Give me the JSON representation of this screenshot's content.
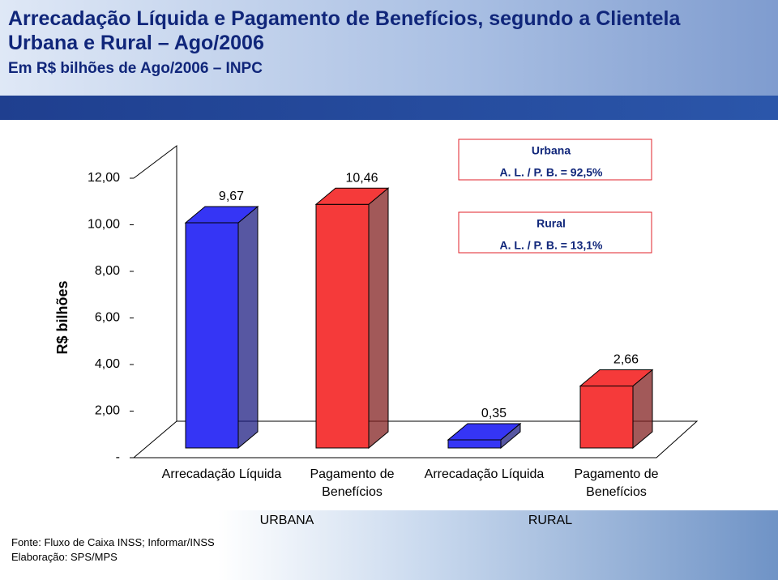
{
  "chart_data": {
    "type": "bar3d",
    "title": "Arrecadação Líquida e Pagamento de Benefícios, segundo a Clientela Urbana e Rural – Ago/2006",
    "subtitle": "Em R$ bilhões de Ago/2006 – INPC",
    "y_label": "R$ bilhões",
    "categories": [
      "Arrecadação Líquida",
      "Pagamento de Benefícios",
      "Arrecadação Líquida",
      "Pagamento de Benefícios"
    ],
    "groups": [
      "URBANA",
      "RURAL"
    ],
    "values": [
      9.67,
      10.46,
      0.35,
      2.66
    ],
    "value_labels": [
      "9,67",
      "10,46",
      "0,35",
      "2,66"
    ],
    "colors": [
      "#3535f5",
      "#f53a3a",
      "#3535f5",
      "#f53a3a"
    ],
    "ylim": [
      0,
      12
    ],
    "yticks": [
      {
        "value": 0,
        "label": "-"
      },
      {
        "value": 2,
        "label": "2,00"
      },
      {
        "value": 4,
        "label": "4,00"
      },
      {
        "value": 6,
        "label": "6,00"
      },
      {
        "value": 8,
        "label": "8,00"
      },
      {
        "value": 10,
        "label": "10,00"
      },
      {
        "value": 12,
        "label": "12,00"
      }
    ],
    "annotations": [
      {
        "title": "Urbana",
        "text": "A. L. / P. B. = 92,5%"
      },
      {
        "title": "Rural",
        "text": "A. L. / P. B. = 13,1%"
      }
    ],
    "source": [
      "Fonte: Fluxo de Caixa INSS; Informar/INSS",
      "Elaboração: SPS/MPS"
    ]
  }
}
